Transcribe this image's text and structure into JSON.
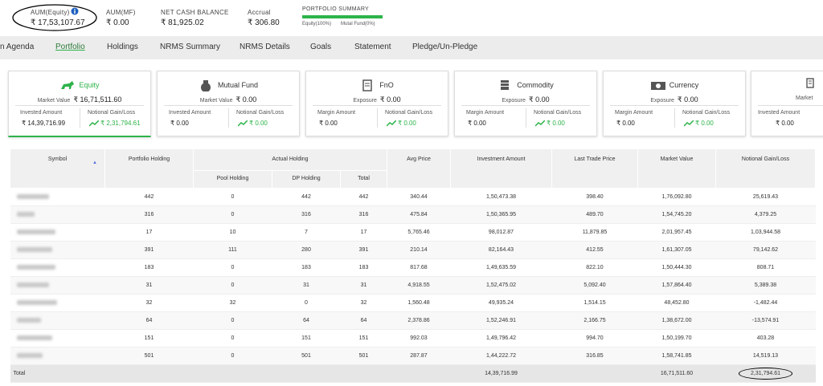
{
  "header": {
    "aum_equity": {
      "label": "AUM(Equity)",
      "value": "₹ 17,53,107.67"
    },
    "aum_mf": {
      "label": "AUM(MF)",
      "value": "₹ 0.00"
    },
    "net_cash_balance": {
      "label": "NET CASH BALANCE",
      "value": "₹ 81,925.02"
    },
    "accrual": {
      "label": "Accrual",
      "value": "₹ 306.80"
    },
    "portfolio_summary": {
      "title": "PORTFOLIO SUMMARY",
      "equity": "Equity(100%)",
      "mutual_fund": "Mutal Fund(0%)"
    }
  },
  "nav": {
    "items": [
      "n Agenda",
      "Portfolio",
      "Holdings",
      "NRMS Summary",
      "NRMS Details",
      "Goals",
      "Statement",
      "Pledge/Un-Pledge"
    ]
  },
  "cards": [
    {
      "title": "Equity",
      "market_label": "Market Value",
      "market_value": "₹ 16,71,511.60",
      "left_label": "Invested Amount",
      "left_value": "₹ 14,39,716.99",
      "right_label": "Notional Gain/Loss",
      "right_value": "₹ 2,31,794.61"
    },
    {
      "title": "Mutual Fund",
      "market_label": "Market Value",
      "market_value": "₹ 0.00",
      "left_label": "Invested Amount",
      "left_value": "₹ 0.00",
      "right_label": "Notional Gain/Loss",
      "right_value": "₹ 0.00"
    },
    {
      "title": "FnO",
      "market_label": "Exposure",
      "market_value": "₹ 0.00",
      "left_label": "Margin Amount",
      "left_value": "₹ 0.00",
      "right_label": "Notional Gain/Loss",
      "right_value": "₹ 0.00"
    },
    {
      "title": "Commodity",
      "market_label": "Exposure",
      "market_value": "₹ 0.00",
      "left_label": "Margin Amount",
      "left_value": "₹ 0.00",
      "right_label": "Notional Gain/Loss",
      "right_value": "₹ 0.00"
    },
    {
      "title": "Currency",
      "market_label": "Exposure",
      "market_value": "₹ 0.00",
      "left_label": "Margin Amount",
      "left_value": "₹ 0.00",
      "right_label": "Notional Gain/Loss",
      "right_value": "₹ 0.00"
    }
  ],
  "partial_card": {
    "market_label": "Market",
    "left_label": "Invested Amount",
    "left_value": "₹ 0.00"
  },
  "table": {
    "group": "Actual Holding",
    "columns": [
      "Symbol",
      "Portfolio Holding",
      "Pool Holding",
      "DP Holding",
      "Total",
      "Avg Price",
      "Investment Amount",
      "Last Trade Price",
      "Market Value",
      "Notional Gain/Loss"
    ],
    "rows": [
      [
        "442",
        "0",
        "442",
        "442",
        "340.44",
        "1,50,473.38",
        "398.40",
        "1,76,092.80",
        "25,619.43"
      ],
      [
        "316",
        "0",
        "316",
        "316",
        "475.84",
        "1,50,365.95",
        "489.70",
        "1,54,745.20",
        "4,379.25"
      ],
      [
        "17",
        "10",
        "7",
        "17",
        "5,765.46",
        "98,012.87",
        "11,879.85",
        "2,01,957.45",
        "1,03,944.58"
      ],
      [
        "391",
        "111",
        "280",
        "391",
        "210.14",
        "82,164.43",
        "412.55",
        "1,61,307.05",
        "79,142.62"
      ],
      [
        "183",
        "0",
        "183",
        "183",
        "817.68",
        "1,49,635.59",
        "822.10",
        "1,50,444.30",
        "808.71"
      ],
      [
        "31",
        "0",
        "31",
        "31",
        "4,918.55",
        "1,52,475.02",
        "5,092.40",
        "1,57,864.40",
        "5,389.38"
      ],
      [
        "32",
        "32",
        "0",
        "32",
        "1,560.48",
        "49,935.24",
        "1,514.15",
        "48,452.80",
        "-1,482.44"
      ],
      [
        "64",
        "0",
        "64",
        "64",
        "2,378.86",
        "1,52,246.91",
        "2,166.75",
        "1,38,672.00",
        "-13,574.91"
      ],
      [
        "151",
        "0",
        "151",
        "151",
        "992.03",
        "1,49,796.42",
        "994.70",
        "1,50,199.70",
        "403.28"
      ],
      [
        "501",
        "0",
        "501",
        "501",
        "287.87",
        "1,44,222.72",
        "316.85",
        "1,58,741.85",
        "14,519.13"
      ]
    ],
    "total": {
      "label": "Total",
      "investment_amount": "14,39,716.99",
      "market_value": "16,71,511.60",
      "notional_gain_loss": "2,31,794.61"
    }
  }
}
